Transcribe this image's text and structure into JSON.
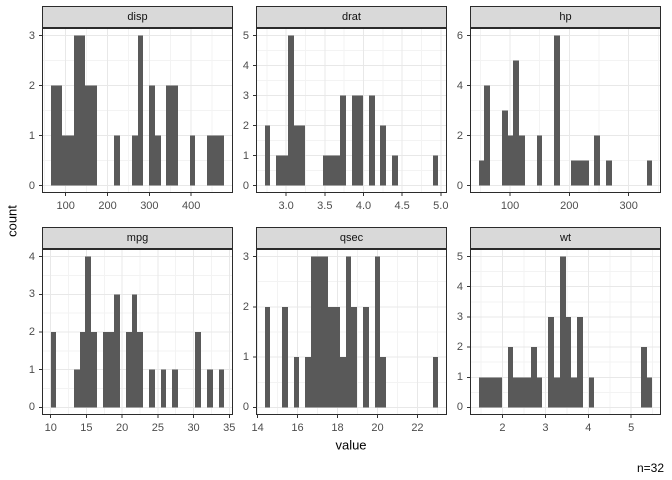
{
  "figure": {
    "y_axis_title": "count",
    "x_axis_title": "value",
    "caption": "n=32",
    "colors": {
      "background": "#ffffff",
      "panel_background": "#ffffff",
      "panel_border": "#2b2b2b",
      "grid_major": "#e8e8e8",
      "grid_minor": "#f3f3f3",
      "bar_fill": "#595959",
      "strip_background": "#d9d9d9",
      "strip_border": "#2b2b2b",
      "strip_text": "#111111",
      "tick_mark": "#333333",
      "tick_label": "#4d4d4d",
      "title_text": "#000000"
    }
  },
  "chart_data": {
    "type": "bar",
    "subtype": "faceted-histogram",
    "title": "",
    "xlabel": "value",
    "ylabel": "count",
    "legend": "none",
    "grid": "on",
    "caption": "n=32",
    "facets": [
      {
        "label": "disp",
        "bin_origin": 64.18621,
        "bin_width": 13.82759,
        "counts": [
          2,
          2,
          1,
          1,
          3,
          3,
          2,
          2,
          0,
          0,
          0,
          1,
          0,
          0,
          1,
          3,
          0,
          2,
          1,
          0,
          2,
          2,
          0,
          0,
          1,
          0,
          0,
          1,
          1,
          1
        ],
        "x_tick_values": [
          100,
          200,
          300,
          400
        ],
        "x_tick_labels": [
          "100",
          "200",
          "300",
          "400"
        ],
        "y_tick_values": [
          0,
          1,
          2,
          3
        ],
        "y_tick_labels": [
          "0",
          "1",
          "2",
          "3"
        ],
        "y_max": 3
      },
      {
        "label": "drat",
        "bin_origin": 2.722586,
        "bin_width": 0.0748276,
        "counts": [
          2,
          0,
          1,
          1,
          5,
          2,
          2,
          0,
          0,
          0,
          1,
          1,
          1,
          3,
          0,
          3,
          3,
          0,
          3,
          0,
          2,
          0,
          1,
          0,
          0,
          0,
          0,
          0,
          0,
          1
        ],
        "x_tick_values": [
          3.0,
          3.5,
          4.0,
          4.5,
          5.0
        ],
        "x_tick_labels": [
          "3.0",
          "3.5",
          "4.0",
          "4.5",
          "5.0"
        ],
        "y_tick_values": [
          0,
          1,
          2,
          3,
          4,
          5
        ],
        "y_tick_labels": [
          "0",
          "1",
          "2",
          "3",
          "4",
          "5"
        ],
        "y_max": 5
      },
      {
        "label": "hp",
        "bin_origin": 47.12069,
        "bin_width": 9.758621,
        "counts": [
          1,
          4,
          0,
          0,
          3,
          2,
          5,
          2,
          0,
          0,
          2,
          0,
          0,
          6,
          0,
          0,
          1,
          1,
          1,
          0,
          2,
          0,
          1,
          0,
          0,
          0,
          0,
          0,
          0,
          1
        ],
        "x_tick_values": [
          100,
          200,
          300
        ],
        "x_tick_labels": [
          "100",
          "200",
          "300"
        ],
        "y_tick_values": [
          0,
          2,
          4,
          6
        ],
        "y_tick_labels": [
          "0",
          "2",
          "4",
          "6"
        ],
        "y_max": 6
      },
      {
        "label": "mpg",
        "bin_origin": 9.994828,
        "bin_width": 0.8103448,
        "counts": [
          2,
          0,
          0,
          0,
          1,
          2,
          4,
          2,
          0,
          2,
          2,
          3,
          0,
          2,
          3,
          2,
          0,
          1,
          0,
          1,
          0,
          1,
          0,
          0,
          0,
          2,
          0,
          1,
          0,
          1
        ],
        "x_tick_values": [
          10,
          15,
          20,
          25,
          30,
          35
        ],
        "x_tick_labels": [
          "10",
          "15",
          "20",
          "25",
          "30",
          "35"
        ],
        "y_tick_values": [
          0,
          1,
          2,
          3,
          4
        ],
        "y_tick_labels": [
          "0",
          "1",
          "2",
          "3",
          "4"
        ],
        "y_max": 4
      },
      {
        "label": "qsec",
        "bin_origin": 14.355172,
        "bin_width": 0.2896552,
        "counts": [
          2,
          0,
          0,
          2,
          0,
          1,
          0,
          1,
          3,
          3,
          3,
          2,
          2,
          1,
          3,
          2,
          0,
          2,
          0,
          3,
          1,
          0,
          0,
          0,
          0,
          0,
          0,
          0,
          0,
          1
        ],
        "x_tick_values": [
          14,
          16,
          18,
          20,
          22
        ],
        "x_tick_labels": [
          "14",
          "16",
          "18",
          "20",
          "22"
        ],
        "y_tick_values": [
          0,
          1,
          2,
          3
        ],
        "y_tick_labels": [
          "0",
          "1",
          "2",
          "3"
        ],
        "y_max": 3
      },
      {
        "label": "wt",
        "bin_origin": 1.445569,
        "bin_width": 0.1348621,
        "counts": [
          1,
          1,
          1,
          1,
          0,
          2,
          1,
          1,
          1,
          2,
          1,
          0,
          3,
          1,
          5,
          3,
          1,
          3,
          0,
          1,
          0,
          0,
          0,
          0,
          0,
          0,
          0,
          0,
          2,
          1
        ],
        "x_tick_values": [
          2,
          3,
          4,
          5
        ],
        "x_tick_labels": [
          "2",
          "3",
          "4",
          "5"
        ],
        "y_tick_values": [
          0,
          1,
          2,
          3,
          4,
          5
        ],
        "y_tick_labels": [
          "0",
          "1",
          "2",
          "3",
          "4",
          "5"
        ],
        "y_max": 5
      }
    ]
  }
}
